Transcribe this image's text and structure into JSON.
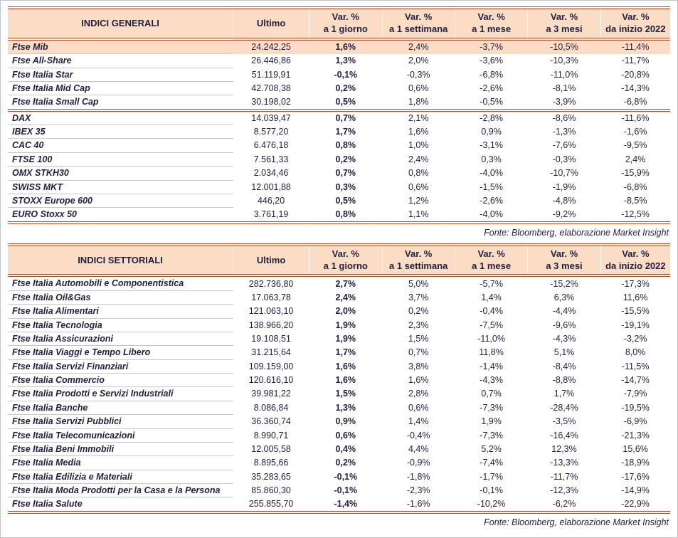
{
  "colors": {
    "header_bg": "#fbdcc5",
    "rule": "#b9492b",
    "text": "#221f3f"
  },
  "chart_data": [
    {
      "type": "table",
      "title": "INDICI GENERALI",
      "col_ultimo": "Ultimo",
      "var_label": "Var. %",
      "periods": [
        "a 1 giorno",
        "a 1 settimana",
        "a 1 mese",
        "a 3 mesi",
        "da inizio 2022"
      ],
      "rows": [
        {
          "name": "Ftse Mib",
          "values": [
            "24.242,25",
            "1,6%",
            "2,4%",
            "-3,7%",
            "-10,5%",
            "-11,4%"
          ],
          "highlight": true
        },
        {
          "name": "Ftse All-Share",
          "values": [
            "26.446,86",
            "1,3%",
            "2,0%",
            "-3,6%",
            "-10,3%",
            "-11,7%"
          ]
        },
        {
          "name": "Ftse Italia Star",
          "values": [
            "51.119,91",
            "-0,1%",
            "-0,3%",
            "-6,8%",
            "-11,0%",
            "-20,8%"
          ]
        },
        {
          "name": "Ftse Italia Mid Cap",
          "values": [
            "42.708,38",
            "0,2%",
            "0,6%",
            "-2,6%",
            "-8,1%",
            "-14,3%"
          ]
        },
        {
          "name": "Ftse Italia Small Cap",
          "values": [
            "30.198,02",
            "0,5%",
            "1,8%",
            "-0,5%",
            "-3,9%",
            "-6,8%"
          ],
          "separator_after": true
        },
        {
          "name": "DAX",
          "values": [
            "14.039,47",
            "0,7%",
            "2,1%",
            "-2,8%",
            "-8,6%",
            "-11,6%"
          ]
        },
        {
          "name": "IBEX 35",
          "values": [
            "8.577,20",
            "1,7%",
            "1,6%",
            "0,9%",
            "-1,3%",
            "-1,6%"
          ]
        },
        {
          "name": "CAC 40",
          "values": [
            "6.476,18",
            "0,8%",
            "1,0%",
            "-3,1%",
            "-7,6%",
            "-9,5%"
          ]
        },
        {
          "name": "FTSE 100",
          "values": [
            "7.561,33",
            "0,2%",
            "2,4%",
            "0,3%",
            "-0,3%",
            "2,4%"
          ]
        },
        {
          "name": "OMX STKH30",
          "values": [
            "2.034,46",
            "0,7%",
            "0,8%",
            "-4,0%",
            "-10,7%",
            "-15,9%"
          ]
        },
        {
          "name": "SWISS MKT",
          "values": [
            "12.001,88",
            "0,3%",
            "0,6%",
            "-1,5%",
            "-1,9%",
            "-6,8%"
          ]
        },
        {
          "name": "STOXX Europe 600",
          "values": [
            "446,20",
            "0,5%",
            "1,2%",
            "-2,6%",
            "-4,8%",
            "-8,5%"
          ]
        },
        {
          "name": "EURO Stoxx 50",
          "values": [
            "3.761,19",
            "0,8%",
            "1,1%",
            "-4,0%",
            "-9,2%",
            "-12,5%"
          ]
        }
      ],
      "source": "Fonte: Bloomberg, elaborazione Market Insight"
    },
    {
      "type": "table",
      "title": "INDICI SETTORIALI",
      "col_ultimo": "Ultimo",
      "var_label": "Var. %",
      "periods": [
        "a 1 giorno",
        "a 1 settimana",
        "a 1 mese",
        "a 3 mesi",
        "da inizio 2022"
      ],
      "rows": [
        {
          "name": "Ftse Italia Automobili e Componentistica",
          "values": [
            "282.736,80",
            "2,7%",
            "5,0%",
            "-5,7%",
            "-15,2%",
            "-17,3%"
          ]
        },
        {
          "name": "Ftse Italia Oil&Gas",
          "values": [
            "17.063,78",
            "2,4%",
            "3,7%",
            "1,4%",
            "6,3%",
            "11,6%"
          ]
        },
        {
          "name": "Ftse Italia Alimentari",
          "values": [
            "121.063,10",
            "2,0%",
            "0,2%",
            "-0,4%",
            "-4,4%",
            "-15,5%"
          ]
        },
        {
          "name": "Ftse Italia Tecnologia",
          "values": [
            "138.966,20",
            "1,9%",
            "2,3%",
            "-7,5%",
            "-9,6%",
            "-19,1%"
          ]
        },
        {
          "name": "Ftse Italia Assicurazioni",
          "values": [
            "19.108,51",
            "1,9%",
            "1,5%",
            "-11,0%",
            "-4,3%",
            "-3,2%"
          ]
        },
        {
          "name": "Ftse Italia Viaggi e Tempo Libero",
          "values": [
            "31.215,64",
            "1,7%",
            "0,7%",
            "11,8%",
            "5,1%",
            "8,0%"
          ]
        },
        {
          "name": "Ftse Italia Servizi Finanziari",
          "values": [
            "109.159,00",
            "1,6%",
            "3,8%",
            "-1,4%",
            "-8,4%",
            "-11,5%"
          ]
        },
        {
          "name": "Ftse Italia Commercio",
          "values": [
            "120.616,10",
            "1,6%",
            "1,6%",
            "-4,3%",
            "-8,8%",
            "-14,7%"
          ]
        },
        {
          "name": "Ftse Italia Prodotti e Servizi Industriali",
          "values": [
            "39.981,22",
            "1,5%",
            "2,8%",
            "0,7%",
            "1,7%",
            "-7,9%"
          ]
        },
        {
          "name": "Ftse Italia Banche",
          "values": [
            "8.086,84",
            "1,3%",
            "0,6%",
            "-7,3%",
            "-28,4%",
            "-19,5%"
          ]
        },
        {
          "name": "Ftse Italia Servizi Pubblici",
          "values": [
            "36.360,74",
            "0,9%",
            "1,4%",
            "1,9%",
            "-3,5%",
            "-6,9%"
          ]
        },
        {
          "name": "Ftse Italia Telecomunicazioni",
          "values": [
            "8.990,71",
            "0,6%",
            "-0,4%",
            "-7,3%",
            "-16,4%",
            "-21,3%"
          ]
        },
        {
          "name": "Ftse Italia Beni Immobili",
          "values": [
            "12.005,58",
            "0,4%",
            "4,4%",
            "5,2%",
            "12,3%",
            "15,6%"
          ]
        },
        {
          "name": "Ftse Italia Media",
          "values": [
            "8.895,66",
            "0,2%",
            "-0,9%",
            "-7,4%",
            "-13,3%",
            "-18,9%"
          ]
        },
        {
          "name": "Ftse Italia Edilizia e Materiali",
          "values": [
            "35.283,65",
            "-0,1%",
            "-1,8%",
            "-1,7%",
            "-11,7%",
            "-17,6%"
          ]
        },
        {
          "name": "Ftse Italia Moda Prodotti per la Casa e la Persona",
          "values": [
            "85.860,30",
            "-0,1%",
            "-2,3%",
            "-0,1%",
            "-12,3%",
            "-14,9%"
          ]
        },
        {
          "name": "Ftse Italia Salute",
          "values": [
            "255.855,70",
            "-1,4%",
            "-1,6%",
            "-10,2%",
            "-6,2%",
            "-22,9%"
          ]
        }
      ],
      "source": "Fonte: Bloomberg, elaborazione Market Insight"
    }
  ]
}
